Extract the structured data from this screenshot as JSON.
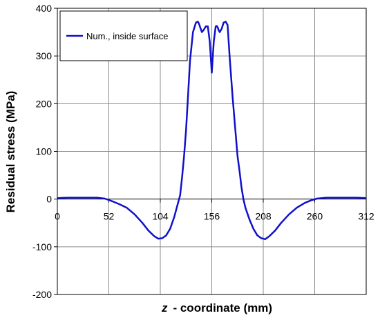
{
  "chart_data": {
    "type": "line",
    "xlabel_symbol": "z",
    "xlabel": "- coordinate (mm)",
    "ylabel": "Residual stress (MPa)",
    "xlim": [
      0,
      312
    ],
    "ylim": [
      -200,
      400
    ],
    "x_ticks": [
      0,
      52,
      104,
      156,
      208,
      260,
      312
    ],
    "y_ticks": [
      -200,
      -100,
      0,
      100,
      200,
      300,
      400
    ],
    "grid": true,
    "legend_position": "top-left",
    "series": [
      {
        "name": "Num., inside surface",
        "color": "#1010cc",
        "x": [
          0,
          10,
          20,
          30,
          40,
          48,
          52,
          56,
          62,
          70,
          78,
          86,
          92,
          98,
          102,
          106,
          110,
          114,
          118,
          121,
          124,
          126,
          128,
          130,
          132,
          134,
          137,
          140,
          142,
          143,
          144,
          145,
          146,
          148,
          150,
          152,
          154,
          156,
          158,
          160,
          161,
          162,
          163,
          164,
          166,
          168,
          170,
          172,
          174,
          177,
          180,
          182,
          184,
          186,
          188,
          190,
          194,
          198,
          202,
          206,
          210,
          214,
          220,
          226,
          234,
          242,
          250,
          256,
          262,
          272,
          282,
          292,
          302,
          312
        ],
        "y": [
          2,
          3,
          3,
          3,
          3,
          1,
          -2,
          -5,
          -10,
          -18,
          -32,
          -50,
          -66,
          -78,
          -83,
          -82,
          -76,
          -62,
          -38,
          -15,
          8,
          45,
          90,
          145,
          215,
          290,
          350,
          370,
          372,
          368,
          362,
          356,
          350,
          355,
          362,
          362,
          330,
          265,
          330,
          362,
          363,
          360,
          354,
          350,
          357,
          370,
          372,
          365,
          300,
          215,
          140,
          90,
          60,
          25,
          0,
          -18,
          -42,
          -62,
          -76,
          -82,
          -84,
          -78,
          -66,
          -50,
          -32,
          -18,
          -8,
          -3,
          1,
          3,
          3,
          3,
          3,
          2
        ]
      }
    ]
  }
}
